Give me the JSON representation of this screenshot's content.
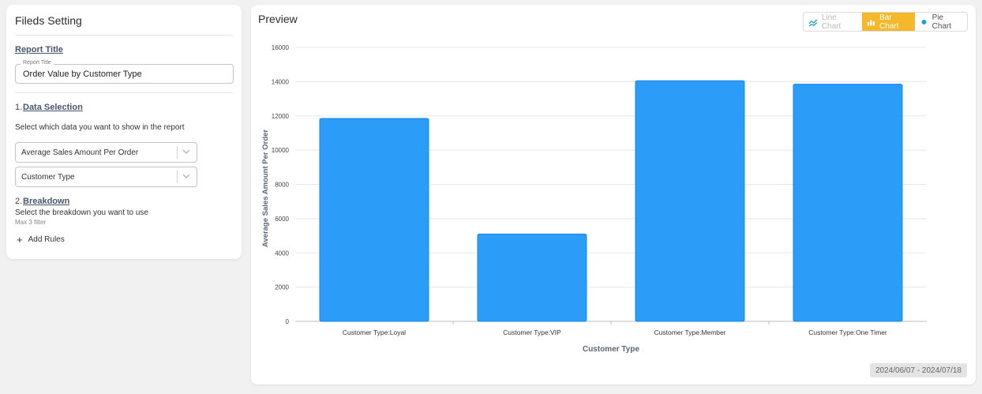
{
  "settings": {
    "title": "Fileds Setting",
    "report_title_section": "Report Title",
    "report_title_field": {
      "legend": "Report Title",
      "value": "Order Value by Customer Type"
    },
    "data_selection": {
      "number": "1.",
      "label": "Data Selection",
      "description": "Select which data you want to show in the report",
      "metric_select": "Average Sales Amount Per Order",
      "dimension_select": "Customer Type"
    },
    "breakdown": {
      "number": "2.",
      "label": "Breakdown",
      "description": "Select the breakdown you want to use",
      "hint": "Max 3 filter",
      "add_rules": "Add Rules"
    }
  },
  "preview": {
    "title": "Preview",
    "chart_toggle": [
      {
        "label": "Line Chart",
        "icon": "line-chart-icon",
        "active": false
      },
      {
        "label": "Bar Chart",
        "icon": "bar-chart-icon",
        "active": true
      },
      {
        "label": "Pie Chart",
        "icon": "pie-chart-icon",
        "active": false
      }
    ],
    "date_range": "2024/06/07 - 2024/07/18"
  },
  "colors": {
    "bar": "#2b9cf8",
    "bar_border": "#1a88e6",
    "accent": "#f5b82a",
    "pie_dot": "#1aa6c4"
  },
  "chart_data": {
    "type": "bar",
    "categories": [
      "Customer Type:Loyal",
      "Customer Type:VIP",
      "Customer Type:Member",
      "Customer Type:One Timer"
    ],
    "values": [
      11850,
      5100,
      14050,
      13850
    ],
    "xlabel": "Customer Type",
    "ylabel": "Average Sales Amount Per Order",
    "ylim": [
      0,
      16000
    ],
    "yticks": [
      0,
      2000,
      4000,
      6000,
      8000,
      10000,
      12000,
      14000,
      16000
    ],
    "grid": true
  }
}
